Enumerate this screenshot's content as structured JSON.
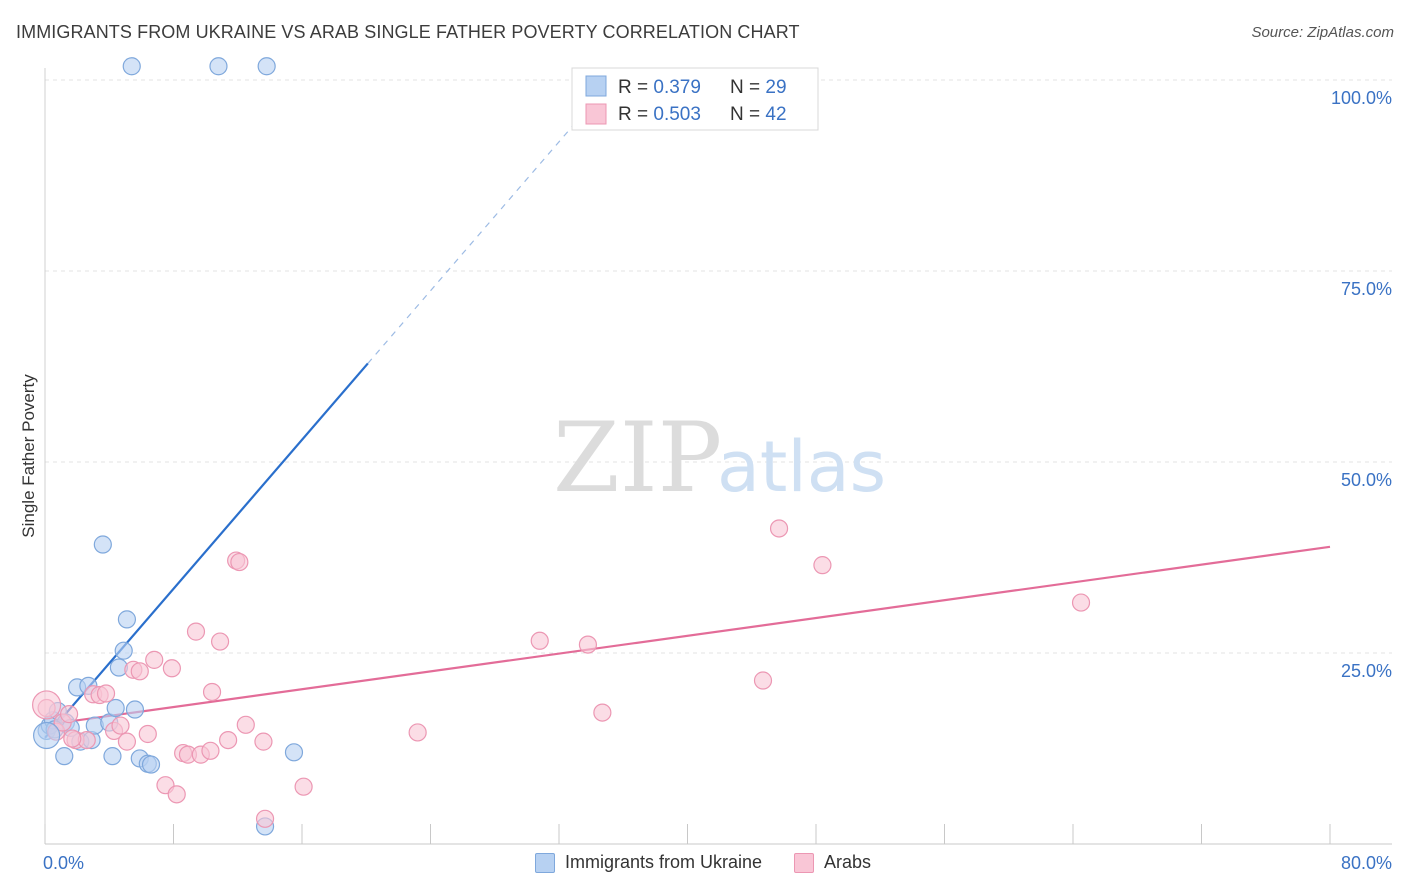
{
  "header": {
    "title": "IMMIGRANTS FROM UKRAINE VS ARAB SINGLE FATHER POVERTY CORRELATION CHART",
    "source": "Source: ZipAtlas.com"
  },
  "watermark": {
    "zip": "ZIP",
    "atlas": "atlas"
  },
  "colors": {
    "blue_fill": "#b7d1f2",
    "blue_stroke": "#7fa8dc",
    "blue_line": "#2a6fcc",
    "pink_fill": "#f9c6d6",
    "pink_stroke": "#ec97b3",
    "pink_line": "#e36c98",
    "value_text": "#3a72c4"
  },
  "legend": {
    "rows": [
      {
        "r_label": "R = ",
        "r_value": "0.379",
        "n_label": "N = ",
        "n_value": "29"
      },
      {
        "r_label": "R = ",
        "r_value": "0.503",
        "n_label": "N = ",
        "n_value": "42"
      }
    ]
  },
  "chart_data": {
    "type": "scatter",
    "title": "IMMIGRANTS FROM UKRAINE VS ARAB SINGLE FATHER POVERTY CORRELATION CHART",
    "xlabel": "",
    "ylabel": "Single Father Poverty",
    "xlim": [
      0,
      80
    ],
    "ylim": [
      0,
      100
    ],
    "x_tick_labels": [
      "0.0%",
      "80.0%"
    ],
    "y_tick_labels": [
      "100.0%",
      "75.0%",
      "50.0%",
      "25.0%"
    ],
    "y_ticks": [
      100,
      75,
      50,
      25
    ],
    "grid": true,
    "legend_position": "top-center",
    "series": [
      {
        "name": "Immigrants from Ukraine",
        "r": 0.379,
        "n": 29,
        "trend": {
          "x0": 0,
          "y0": 13.9,
          "x1": 20.1,
          "y1": 62.9,
          "dashed_to_x": 35
        },
        "points": [
          [
            0.1,
            14.8
          ],
          [
            0.3,
            15.5
          ],
          [
            0.5,
            16.2
          ],
          [
            0.8,
            17.4
          ],
          [
            1.2,
            11.5
          ],
          [
            1.3,
            15.9
          ],
          [
            1.6,
            15.2
          ],
          [
            2.0,
            20.5
          ],
          [
            2.2,
            13.4
          ],
          [
            2.7,
            20.7
          ],
          [
            2.9,
            13.6
          ],
          [
            3.1,
            15.5
          ],
          [
            3.6,
            39.2
          ],
          [
            4.0,
            15.9
          ],
          [
            4.2,
            11.5
          ],
          [
            4.4,
            17.8
          ],
          [
            4.6,
            23.1
          ],
          [
            4.9,
            25.3
          ],
          [
            5.1,
            29.4
          ],
          [
            5.6,
            17.6
          ],
          [
            5.9,
            11.2
          ],
          [
            6.4,
            10.5
          ],
          [
            6.6,
            10.4
          ],
          [
            5.4,
            101.8
          ],
          [
            10.8,
            101.8
          ],
          [
            13.8,
            101.8
          ],
          [
            13.7,
            2.3
          ],
          [
            15.5,
            12.0
          ],
          [
            0.6,
            15.0
          ]
        ]
      },
      {
        "name": "Arabs",
        "r": 0.503,
        "n": 42,
        "trend": {
          "x0": 0,
          "y0": 15.6,
          "x1": 80,
          "y1": 38.9
        },
        "points": [
          [
            0.1,
            17.8
          ],
          [
            0.7,
            14.7
          ],
          [
            1.1,
            15.9
          ],
          [
            1.5,
            17.0
          ],
          [
            1.9,
            13.6
          ],
          [
            2.6,
            13.6
          ],
          [
            3.0,
            19.6
          ],
          [
            3.4,
            19.5
          ],
          [
            3.8,
            19.7
          ],
          [
            4.3,
            14.8
          ],
          [
            4.7,
            15.5
          ],
          [
            5.1,
            13.4
          ],
          [
            5.5,
            22.8
          ],
          [
            5.9,
            22.6
          ],
          [
            6.4,
            14.4
          ],
          [
            6.8,
            24.1
          ],
          [
            7.5,
            7.7
          ],
          [
            7.9,
            23.0
          ],
          [
            8.2,
            6.5
          ],
          [
            8.6,
            11.9
          ],
          [
            8.9,
            11.7
          ],
          [
            9.4,
            27.8
          ],
          [
            9.7,
            11.7
          ],
          [
            10.3,
            12.2
          ],
          [
            10.4,
            19.9
          ],
          [
            10.9,
            26.5
          ],
          [
            11.4,
            13.6
          ],
          [
            11.9,
            37.1
          ],
          [
            12.1,
            36.9
          ],
          [
            12.5,
            15.6
          ],
          [
            13.6,
            13.4
          ],
          [
            13.7,
            3.3
          ],
          [
            16.1,
            7.5
          ],
          [
            23.2,
            14.6
          ],
          [
            30.8,
            26.6
          ],
          [
            33.8,
            26.1
          ],
          [
            34.7,
            17.2
          ],
          [
            44.7,
            21.4
          ],
          [
            45.7,
            41.3
          ],
          [
            48.4,
            36.5
          ],
          [
            64.5,
            31.6
          ],
          [
            1.7,
            13.8
          ]
        ]
      }
    ]
  },
  "bottom_legend": {
    "items": [
      "Immigrants from Ukraine",
      "Arabs"
    ]
  }
}
